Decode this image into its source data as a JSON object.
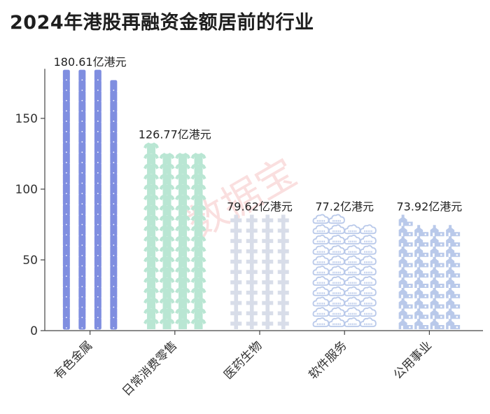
{
  "chart_data": {
    "type": "bar",
    "title": "2024年港股再融资金额居前的行业",
    "categories": [
      "有色金属",
      "日常消费零售",
      "医药生物",
      "软件服务",
      "公用事业"
    ],
    "values": [
      180.61,
      126.77,
      79.62,
      77.2,
      73.92
    ],
    "value_labels": [
      "180.61亿港元",
      "126.77亿港元",
      "79.62亿港元",
      "77.2亿港元",
      "73.92亿港元"
    ],
    "icon_names": [
      "phone-icon",
      "tshirt-icon",
      "cross-icon",
      "cloud-icon",
      "building-icon"
    ],
    "colors": [
      "#7f8ee0",
      "#b9e6d3",
      "#d8dde9",
      "#b9c9ea",
      "#b9c9ea"
    ],
    "ylim": [
      0,
      185
    ],
    "yticks": [
      0,
      50,
      100,
      150
    ],
    "grid": false,
    "xlabel": "",
    "ylabel": ""
  },
  "watermark": "数据宝"
}
